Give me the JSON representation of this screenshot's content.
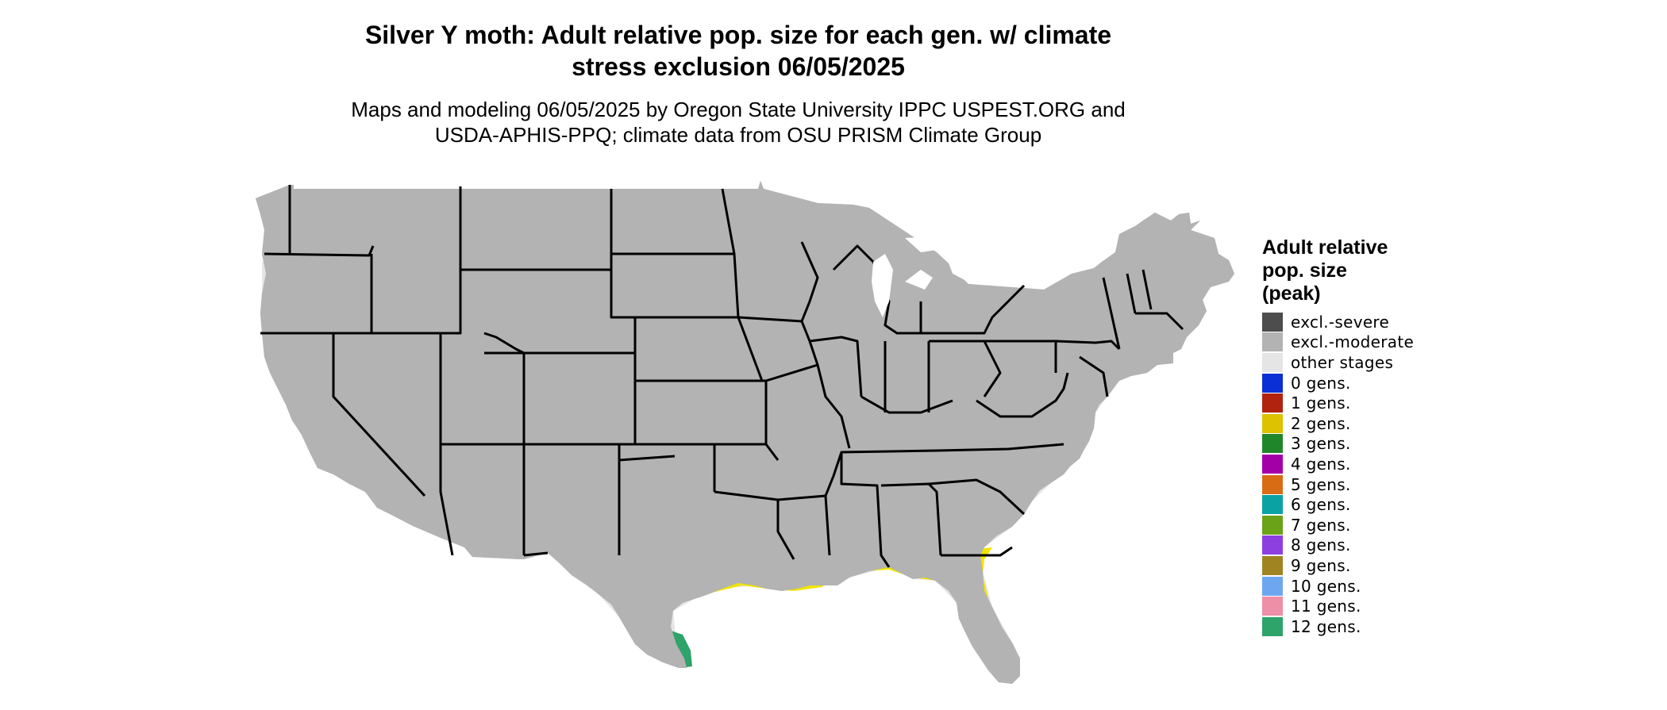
{
  "title_line1": "Silver Y moth: Adult relative pop. size for each gen. w/ climate",
  "title_line2": "stress exclusion 06/05/2025",
  "subtitle_line1": "Maps and modeling 06/05/2025 by Oregon State University IPPC USPEST.ORG and",
  "subtitle_line2": "USDA-APHIS-PPQ; climate data from OSU PRISM Climate Group",
  "legend": {
    "title_lines": [
      "Adult relative",
      "pop. size",
      "(peak)"
    ],
    "items": [
      {
        "label": "excl.-severe",
        "color": "#4d4d4d"
      },
      {
        "label": "excl.-moderate",
        "color": "#b3b3b3"
      },
      {
        "label": "other stages",
        "color": "#e5e5e5"
      },
      {
        "label": "0 gens.",
        "color": "#0b2fd6"
      },
      {
        "label": "1 gens.",
        "color": "#b1230f"
      },
      {
        "label": "2 gens.",
        "color": "#dcc200"
      },
      {
        "label": "3 gens.",
        "color": "#20862a"
      },
      {
        "label": "4 gens.",
        "color": "#a400a8"
      },
      {
        "label": "5 gens.",
        "color": "#d86c15"
      },
      {
        "label": "6 gens.",
        "color": "#0aa3a3"
      },
      {
        "label": "7 gens.",
        "color": "#6aa318"
      },
      {
        "label": "8 gens.",
        "color": "#8d3fe0"
      },
      {
        "label": "9 gens.",
        "color": "#a08422"
      },
      {
        "label": "10 gens.",
        "color": "#6ea7f0"
      },
      {
        "label": "11 gens.",
        "color": "#ee8ea7"
      },
      {
        "label": "12 gens.",
        "color": "#2ea36a"
      }
    ]
  },
  "map_colors": {
    "excluded_moderate": "#b3b3b3",
    "other_stages": "#e5e5e5",
    "zero_gens": "#0b2fd6",
    "one_gen": "#c8300c",
    "one_gen_bright": "#e8420a",
    "two_gens": "#f2e400",
    "two_gens_dark": "#c9b400",
    "twelve_gens": "#2ea36a",
    "border": "#000000"
  }
}
